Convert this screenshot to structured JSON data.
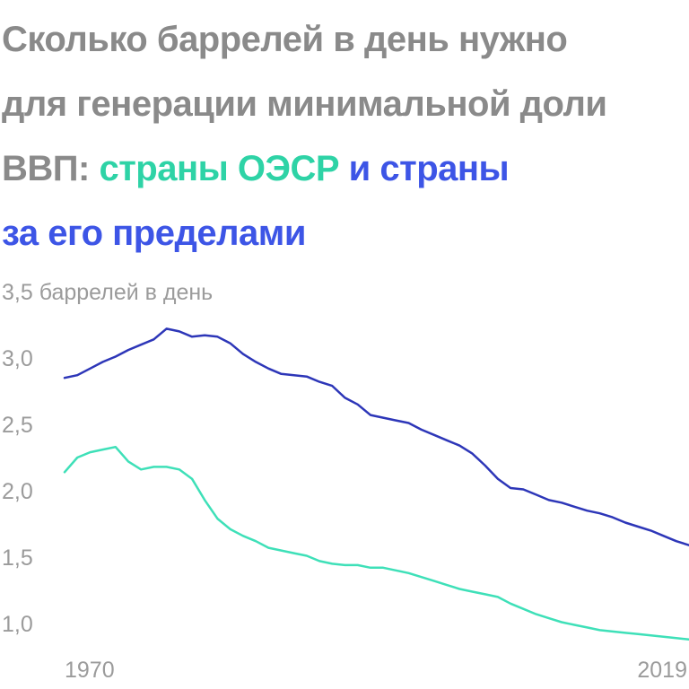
{
  "title": {
    "line1": "Сколько баррелей в день нужно",
    "line2": "для генерации минимальной доли",
    "line3_prefix": "ВВП: ",
    "oecd_label": "страны ОЭСР",
    "line3_mid": " и страны",
    "line4": "за его пределами"
  },
  "chart_data": {
    "type": "line",
    "ylabel": "",
    "y_tick_labels": [
      "3,5 баррелей в день",
      "3,0",
      "2,5",
      "2,0",
      "1,5",
      "1,0"
    ],
    "y_ticks": [
      3.5,
      3.0,
      2.5,
      2.0,
      1.5,
      1.0
    ],
    "x_tick_labels": [
      "1970",
      "2019"
    ],
    "x_ticks": [
      1970,
      2019
    ],
    "xlim": [
      1970,
      2019
    ],
    "ylim": [
      1.0,
      3.5
    ],
    "grid": false,
    "legend": "in-title",
    "x": [
      1970,
      1971,
      1972,
      1973,
      1974,
      1975,
      1976,
      1977,
      1978,
      1979,
      1980,
      1981,
      1982,
      1983,
      1984,
      1985,
      1986,
      1987,
      1988,
      1989,
      1990,
      1991,
      1992,
      1993,
      1994,
      1995,
      1996,
      1997,
      1998,
      1999,
      2000,
      2001,
      2002,
      2003,
      2004,
      2005,
      2006,
      2007,
      2008,
      2009,
      2010,
      2011,
      2012,
      2013,
      2014,
      2015,
      2016,
      2017,
      2018,
      2019
    ],
    "series": [
      {
        "name": "страны за пределами ОЭСР",
        "color": "#2d36b8",
        "values": [
          2.85,
          2.87,
          2.92,
          2.97,
          3.01,
          3.06,
          3.1,
          3.14,
          3.22,
          3.2,
          3.16,
          3.17,
          3.16,
          3.11,
          3.03,
          2.97,
          2.92,
          2.88,
          2.87,
          2.86,
          2.82,
          2.79,
          2.7,
          2.65,
          2.57,
          2.55,
          2.53,
          2.51,
          2.46,
          2.42,
          2.38,
          2.34,
          2.28,
          2.19,
          2.09,
          2.02,
          2.01,
          1.97,
          1.93,
          1.91,
          1.88,
          1.85,
          1.83,
          1.8,
          1.76,
          1.73,
          1.7,
          1.66,
          1.62,
          1.59
        ]
      },
      {
        "name": "страны ОЭСР",
        "color": "#3ee0b8",
        "values": [
          2.14,
          2.25,
          2.29,
          2.31,
          2.33,
          2.22,
          2.16,
          2.18,
          2.18,
          2.16,
          2.09,
          1.93,
          1.79,
          1.71,
          1.66,
          1.62,
          1.57,
          1.55,
          1.53,
          1.51,
          1.47,
          1.45,
          1.44,
          1.44,
          1.42,
          1.42,
          1.4,
          1.38,
          1.35,
          1.32,
          1.29,
          1.26,
          1.24,
          1.22,
          1.2,
          1.15,
          1.11,
          1.07,
          1.04,
          1.01,
          0.99,
          0.97,
          0.95,
          0.94,
          0.93,
          0.92,
          0.91,
          0.9,
          0.89,
          0.88
        ]
      }
    ]
  }
}
